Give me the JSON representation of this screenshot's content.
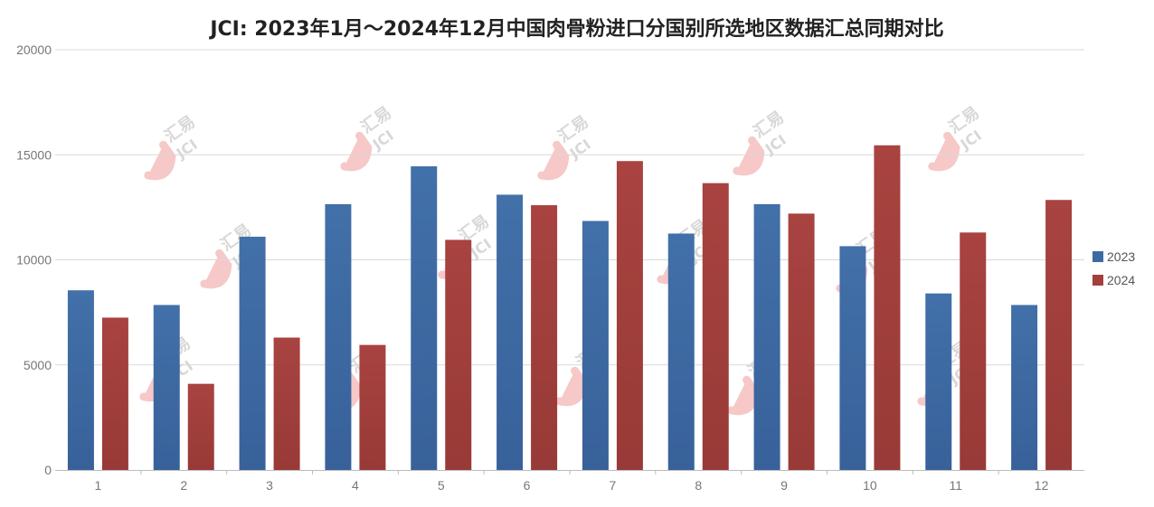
{
  "chart_data": {
    "type": "bar",
    "title": "JCI: 2023年1月～2024年12月中国肉骨粉进口分国别所选地区数据汇总同期对比",
    "xlabel": "",
    "ylabel": "",
    "categories": [
      "1",
      "2",
      "3",
      "4",
      "5",
      "6",
      "7",
      "8",
      "9",
      "10",
      "11",
      "12"
    ],
    "ylim": [
      0,
      20000
    ],
    "yticks": [
      "0",
      "5000",
      "10000",
      "15000",
      "20000"
    ],
    "grid": true,
    "legend_position": "right",
    "series": [
      {
        "name": "2023",
        "color": "#3d6aa3",
        "values": [
          8550,
          7850,
          11100,
          12650,
          14450,
          13100,
          11850,
          11250,
          12650,
          10650,
          8400,
          7850
        ]
      },
      {
        "name": "2024",
        "color": "#a33f3c",
        "values": [
          7250,
          4100,
          6300,
          5950,
          10950,
          12600,
          14700,
          13650,
          12200,
          15450,
          11300,
          12850
        ]
      }
    ]
  },
  "watermark": {
    "brand_cn": "汇易",
    "brand_en": "JCI"
  }
}
